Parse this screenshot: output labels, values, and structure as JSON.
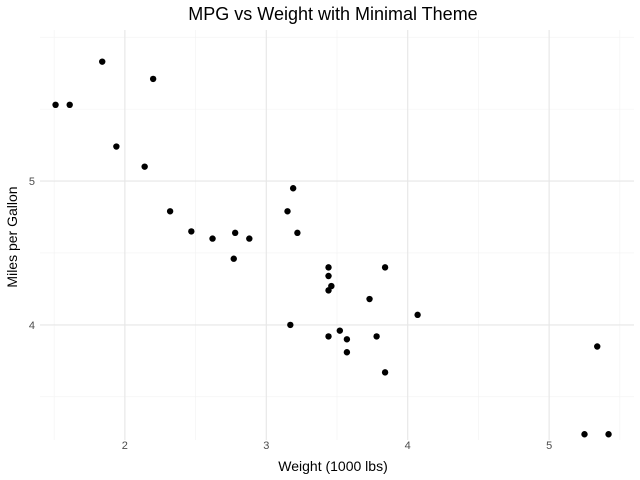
{
  "chart_data": {
    "type": "scatter",
    "title": "MPG vs Weight with Minimal Theme",
    "xlabel": "Weight (1000 lbs)",
    "ylabel": "Miles per Gallon",
    "xlim": [
      1.4,
      5.6
    ],
    "ylim": [
      3.2,
      6.05
    ],
    "x_ticks": [
      2,
      3,
      4,
      5
    ],
    "y_ticks": [
      4,
      5
    ],
    "x_tick_labels": [
      "2",
      "3",
      "4",
      "5"
    ],
    "y_tick_labels": [
      "4",
      "5"
    ],
    "grid": true,
    "legend": "none",
    "point_color": "#000000",
    "points": [
      {
        "x": 1.84,
        "y": 5.83
      },
      {
        "x": 1.51,
        "y": 5.53
      },
      {
        "x": 1.61,
        "y": 5.53
      },
      {
        "x": 2.2,
        "y": 5.71
      },
      {
        "x": 1.94,
        "y": 5.24
      },
      {
        "x": 2.14,
        "y": 5.1
      },
      {
        "x": 2.32,
        "y": 4.79
      },
      {
        "x": 2.47,
        "y": 4.65
      },
      {
        "x": 2.62,
        "y": 4.6
      },
      {
        "x": 2.78,
        "y": 4.64
      },
      {
        "x": 2.77,
        "y": 4.46
      },
      {
        "x": 2.88,
        "y": 4.6
      },
      {
        "x": 3.15,
        "y": 4.79
      },
      {
        "x": 3.19,
        "y": 4.95
      },
      {
        "x": 3.22,
        "y": 4.64
      },
      {
        "x": 3.44,
        "y": 4.4
      },
      {
        "x": 3.44,
        "y": 4.34
      },
      {
        "x": 3.46,
        "y": 4.27
      },
      {
        "x": 3.44,
        "y": 4.24
      },
      {
        "x": 3.84,
        "y": 4.4
      },
      {
        "x": 3.73,
        "y": 4.18
      },
      {
        "x": 4.07,
        "y": 4.07
      },
      {
        "x": 3.17,
        "y": 4.0
      },
      {
        "x": 3.52,
        "y": 3.96
      },
      {
        "x": 3.44,
        "y": 3.92
      },
      {
        "x": 3.57,
        "y": 3.9
      },
      {
        "x": 3.78,
        "y": 3.92
      },
      {
        "x": 3.57,
        "y": 3.81
      },
      {
        "x": 3.84,
        "y": 3.67
      },
      {
        "x": 5.34,
        "y": 3.85
      },
      {
        "x": 5.25,
        "y": 3.24
      },
      {
        "x": 5.42,
        "y": 3.24
      }
    ]
  }
}
